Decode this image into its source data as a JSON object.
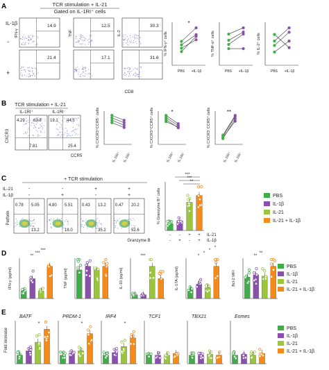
{
  "colors": {
    "pbs": "#3fae49",
    "il1b": "#8b4faf",
    "il21": "#9bc53d",
    "il21_il1b": "#f28a1c",
    "dots": "#7a84c9"
  },
  "legend": [
    {
      "label": "PBS",
      "color": "#3fae49"
    },
    {
      "label": "IL-1β",
      "color": "#8b4faf"
    },
    {
      "label": "IL-21",
      "color": "#9bc53d"
    },
    {
      "label": "IL-21 + IL-1β",
      "color": "#f28a1c"
    }
  ],
  "panelA": {
    "letter": "A",
    "header1": "TCR stimulation + IL-21",
    "header2": "Gated on IL-1RI⁺ cells",
    "rowTitle": "IL-1β",
    "rowMinus": "-",
    "rowPlus": "+",
    "channels": [
      "IFN-γ",
      "TNF",
      "IL-2"
    ],
    "xlabel": "CD8",
    "valuesMinus": [
      "14.9",
      "12.5",
      "30.3"
    ],
    "valuesPlus": [
      "21.4",
      "17.1",
      "31.6"
    ],
    "plots": [
      {
        "ylabel": "% IFN-γ⁺ cells",
        "star": "*"
      },
      {
        "ylabel": "% TNF-α⁺ cells",
        "star": ""
      },
      {
        "ylabel": "% IL-2⁺ cells",
        "star": ""
      }
    ],
    "xticks": [
      "PBS",
      "+IL-1β"
    ]
  },
  "panelB": {
    "letter": "B",
    "header": "TCR stimulation + IL-21",
    "gates": [
      "IL-1RI⁺",
      "IL-1RI⁻"
    ],
    "ylabel": "CXCR3",
    "xlabel": "CCR5",
    "quadLeft": [
      "4.29",
      "63.8",
      "7.81"
    ],
    "quadRight": [
      "19.1",
      "44.5",
      "25.4"
    ],
    "plots": [
      {
        "ylabel": "% CXCR3⁺CCR5⁻ cells",
        "star": ""
      },
      {
        "ylabel": "% CXCR3⁺CCR5⁺ cells",
        "star": "*"
      },
      {
        "ylabel": "% CXCR3⁻CCR5⁺ cells",
        "star": "**"
      }
    ],
    "xticks": [
      "IL-1RI⁺",
      "IL-1RI⁻"
    ]
  },
  "panelC": {
    "letter": "C",
    "header": "+ TCR stimulation",
    "rowIL21": "IL-21",
    "rowIL1b": "IL-1β",
    "il21Signs": [
      "-",
      "-",
      "+",
      "+"
    ],
    "il1bSigns": [
      "-",
      "+",
      "-",
      "+"
    ],
    "ylabel": "Perforin",
    "xlabel": "Granzyme B",
    "topLeft": [
      "0.78",
      "4.80",
      "0.43",
      "0.47"
    ],
    "topRight": [
      "5.05",
      "5.51",
      "13.2",
      "20.2"
    ],
    "bottomRight": [
      "13.2",
      "18.0",
      "35.2",
      "52.6"
    ],
    "barYlabel": "% Granzyme B⁺ cells",
    "barStars": [
      "***",
      "***",
      "**"
    ],
    "barRowIL21": "IL-21",
    "barRowIL1b": "IL-1β",
    "barSignsIL21": [
      "-",
      "-",
      "+",
      "+"
    ],
    "barSignsIL1b": [
      "-",
      "+",
      "-",
      "+"
    ]
  },
  "panelD": {
    "letter": "D",
    "plots": [
      {
        "ylabel": "IFN-γ (pg/ml)",
        "stars": [
          "**",
          "***",
          "***"
        ]
      },
      {
        "ylabel": "TNF (pg/ml)",
        "stars": []
      },
      {
        "ylabel": "IL-10 (pg/ml)",
        "stars": [
          "***"
        ]
      },
      {
        "ylabel": "IL-17A (pg/ml)",
        "stars": [
          "*",
          "*",
          "*",
          "*"
        ]
      },
      {
        "ylabel": "Bcl-2 MFI",
        "stars": [
          "**",
          "**"
        ]
      }
    ]
  },
  "panelE": {
    "letter": "E",
    "ylabel": "Fold increase",
    "genes": [
      {
        "name": "BATF",
        "star": "*"
      },
      {
        "name": "PRDM-1",
        "star": "*"
      },
      {
        "name": "IRF4",
        "star": "*"
      },
      {
        "name": "TCF1",
        "star": ""
      },
      {
        "name": "TBX21",
        "star": ""
      },
      {
        "name": "Eomes",
        "star": ""
      }
    ]
  },
  "chart_data": [
    {
      "type": "line",
      "panel": "A1",
      "ylabel": "% IFN-γ⁺ cells",
      "x": [
        "PBS",
        "+IL-1β"
      ],
      "series": [
        {
          "values": [
            12,
            18
          ]
        },
        {
          "values": [
            14,
            22
          ]
        },
        {
          "values": [
            8,
            17
          ]
        },
        {
          "values": [
            10,
            15
          ]
        }
      ]
    },
    {
      "type": "line",
      "panel": "A2",
      "ylabel": "% TNF-α⁺ cells",
      "x": [
        "PBS",
        "+IL-1β"
      ],
      "series": [
        {
          "values": [
            10,
            15
          ]
        },
        {
          "values": [
            12,
            16
          ]
        },
        {
          "values": [
            8,
            8
          ]
        },
        {
          "values": [
            15,
            18
          ]
        }
      ]
    },
    {
      "type": "line",
      "panel": "A3",
      "ylabel": "% IL-2⁺ cells",
      "x": [
        "PBS",
        "+IL-1β"
      ],
      "series": [
        {
          "values": [
            18,
            30
          ]
        },
        {
          "values": [
            28,
            16
          ]
        },
        {
          "values": [
            22,
            34
          ]
        },
        {
          "values": [
            12,
            22
          ]
        }
      ]
    },
    {
      "type": "line",
      "panel": "B1",
      "ylabel": "% CXCR3⁺CCR5⁻ cells",
      "x": [
        "IL-1RI⁺",
        "IL-1RI⁻"
      ],
      "series": [
        {
          "values": [
            12,
            10
          ]
        },
        {
          "values": [
            10,
            8
          ]
        },
        {
          "values": [
            9,
            7
          ]
        },
        {
          "values": [
            11,
            9
          ]
        }
      ]
    },
    {
      "type": "line",
      "panel": "B2",
      "ylabel": "% CXCR3⁺CCR5⁺ cells",
      "x": [
        "IL-1RI⁺",
        "IL-1RI⁻"
      ],
      "series": [
        {
          "values": [
            70,
            50
          ]
        },
        {
          "values": [
            65,
            45
          ]
        },
        {
          "values": [
            60,
            40
          ]
        },
        {
          "values": [
            55,
            42
          ]
        }
      ]
    },
    {
      "type": "line",
      "panel": "B3",
      "ylabel": "% CXCR3⁻CCR5⁺ cells",
      "x": [
        "IL-1RI⁺",
        "IL-1RI⁻"
      ],
      "series": [
        {
          "values": [
            6,
            20
          ]
        },
        {
          "values": [
            5,
            22
          ]
        },
        {
          "values": [
            7,
            24
          ]
        },
        {
          "values": [
            8,
            25
          ]
        }
      ]
    },
    {
      "type": "bar",
      "panel": "C",
      "ylabel": "% Granzyme B⁺ cells",
      "categories": [
        "PBS",
        "IL-1β",
        "IL-21",
        "IL-21 + IL-1β"
      ],
      "values": [
        14,
        20,
        58,
        72
      ]
    },
    {
      "type": "bar",
      "panel": "D1",
      "ylabel": "IFN-γ (pg/ml)",
      "categories": [
        "PBS",
        "IL-1β",
        "IL-21",
        "IL-21 + IL-1β"
      ],
      "values": [
        6,
        16,
        6,
        26
      ]
    },
    {
      "type": "bar",
      "panel": "D2",
      "ylabel": "TNF (pg/ml)",
      "categories": [
        "PBS",
        "IL-1β",
        "IL-21",
        "IL-21 + IL-1β"
      ],
      "values": [
        8,
        9,
        8,
        9
      ]
    },
    {
      "type": "bar",
      "panel": "D3",
      "ylabel": "IL-10 (pg/ml)",
      "categories": [
        "PBS",
        "IL-1β",
        "IL-21",
        "IL-21 + IL-1β"
      ],
      "values": [
        150,
        150,
        1300,
        800
      ]
    },
    {
      "type": "bar",
      "panel": "D4",
      "ylabel": "IL-17A (pg/ml)",
      "categories": [
        "PBS",
        "IL-1β",
        "IL-21",
        "IL-21 + IL-1β"
      ],
      "values": [
        5,
        8,
        6,
        18
      ]
    },
    {
      "type": "bar",
      "panel": "D5",
      "ylabel": "Bcl-2 MFI",
      "categories": [
        "PBS",
        "IL-1β",
        "IL-21",
        "IL-21 + IL-1β"
      ],
      "values": [
        5000,
        5500,
        5200,
        7500
      ]
    },
    {
      "type": "bar",
      "panel": "E-BATF",
      "ylabel": "Fold increase",
      "categories": [
        "PBS",
        "IL-1β",
        "IL-21",
        "IL-21 + IL-1β"
      ],
      "values": [
        1,
        1.5,
        2.5,
        4
      ]
    },
    {
      "type": "bar",
      "panel": "E-PRDM-1",
      "ylabel": "Fold increase",
      "categories": [
        "PBS",
        "IL-1β",
        "IL-21",
        "IL-21 + IL-1β"
      ],
      "values": [
        1,
        1.2,
        1.5,
        3.5
      ]
    },
    {
      "type": "bar",
      "panel": "E-IRF4",
      "ylabel": "Fold increase",
      "categories": [
        "PBS",
        "IL-1β",
        "IL-21",
        "IL-21 + IL-1β"
      ],
      "values": [
        1,
        1.3,
        2,
        3
      ]
    },
    {
      "type": "bar",
      "panel": "E-TCF1",
      "ylabel": "Fold increase",
      "categories": [
        "PBS",
        "IL-1β",
        "IL-21",
        "IL-21 + IL-1β"
      ],
      "values": [
        1,
        1,
        1,
        1.2
      ]
    },
    {
      "type": "bar",
      "panel": "E-TBX21",
      "ylabel": "Fold increase",
      "categories": [
        "PBS",
        "IL-1β",
        "IL-21",
        "IL-21 + IL-1β"
      ],
      "values": [
        1,
        1,
        1.1,
        1
      ]
    },
    {
      "type": "bar",
      "panel": "E-Eomes",
      "ylabel": "Fold increase",
      "categories": [
        "PBS",
        "IL-1β",
        "IL-21",
        "IL-21 + IL-1β"
      ],
      "values": [
        1,
        1.1,
        1,
        1.2
      ]
    }
  ]
}
